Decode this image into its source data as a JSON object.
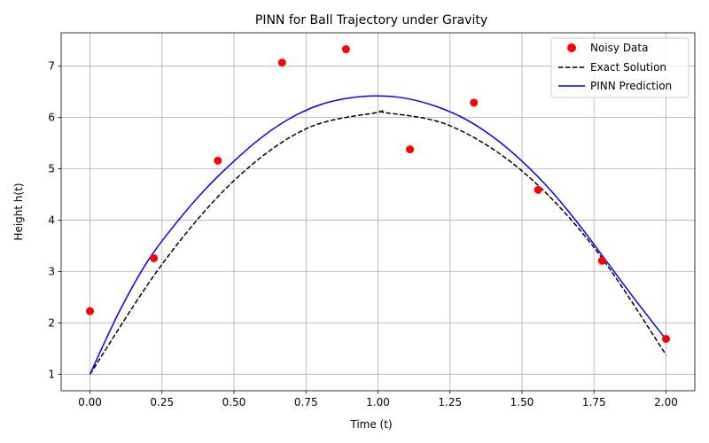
{
  "chart_data": {
    "type": "line",
    "title": "PINN for Ball Trajectory under Gravity",
    "xlabel": "Time (t)",
    "ylabel": "Height h(t)",
    "xlim": [
      -0.1,
      2.1
    ],
    "ylim": [
      0.68,
      7.65
    ],
    "xticks": [
      0.0,
      0.25,
      0.5,
      0.75,
      1.0,
      1.25,
      1.5,
      1.75,
      2.0
    ],
    "xtick_labels": [
      "0.00",
      "0.25",
      "0.50",
      "0.75",
      "1.00",
      "1.25",
      "1.50",
      "1.75",
      "2.00"
    ],
    "yticks": [
      1,
      2,
      3,
      4,
      5,
      6,
      7
    ],
    "ytick_labels": [
      "1",
      "2",
      "3",
      "4",
      "5",
      "6",
      "7"
    ],
    "grid": true,
    "legend_position": "top-right",
    "series": [
      {
        "name": "Noisy Data",
        "kind": "scatter",
        "color": "#ff0000",
        "x": [
          0.0,
          0.222,
          0.444,
          0.667,
          0.889,
          1.111,
          1.333,
          1.556,
          1.778,
          2.0
        ],
        "y": [
          2.23,
          3.26,
          5.16,
          7.07,
          7.33,
          5.38,
          6.29,
          4.59,
          3.21,
          1.69
        ]
      },
      {
        "name": "Exact Solution",
        "kind": "line",
        "style": "dashed",
        "color": "#000000",
        "x": [
          0.0,
          0.25,
          0.5,
          0.75,
          1.0,
          1.02,
          1.25,
          1.5,
          1.75,
          2.0
        ],
        "y": [
          1.0,
          3.14,
          4.77,
          5.78,
          6.1,
          6.1,
          5.84,
          4.96,
          3.47,
          1.38
        ]
      },
      {
        "name": "PINN Prediction",
        "kind": "line",
        "style": "solid",
        "color": "#0000ff",
        "x": [
          0.0,
          0.1,
          0.2,
          0.3,
          0.4,
          0.5,
          0.6,
          0.7,
          0.8,
          0.9,
          1.0,
          1.1,
          1.2,
          1.3,
          1.4,
          1.5,
          1.6,
          1.7,
          1.8,
          1.9,
          2.0
        ],
        "y": [
          1.0,
          2.2,
          3.2,
          3.95,
          4.6,
          5.15,
          5.63,
          6.0,
          6.25,
          6.38,
          6.42,
          6.37,
          6.22,
          5.98,
          5.62,
          5.15,
          4.58,
          3.9,
          3.15,
          2.4,
          1.68
        ]
      }
    ]
  }
}
